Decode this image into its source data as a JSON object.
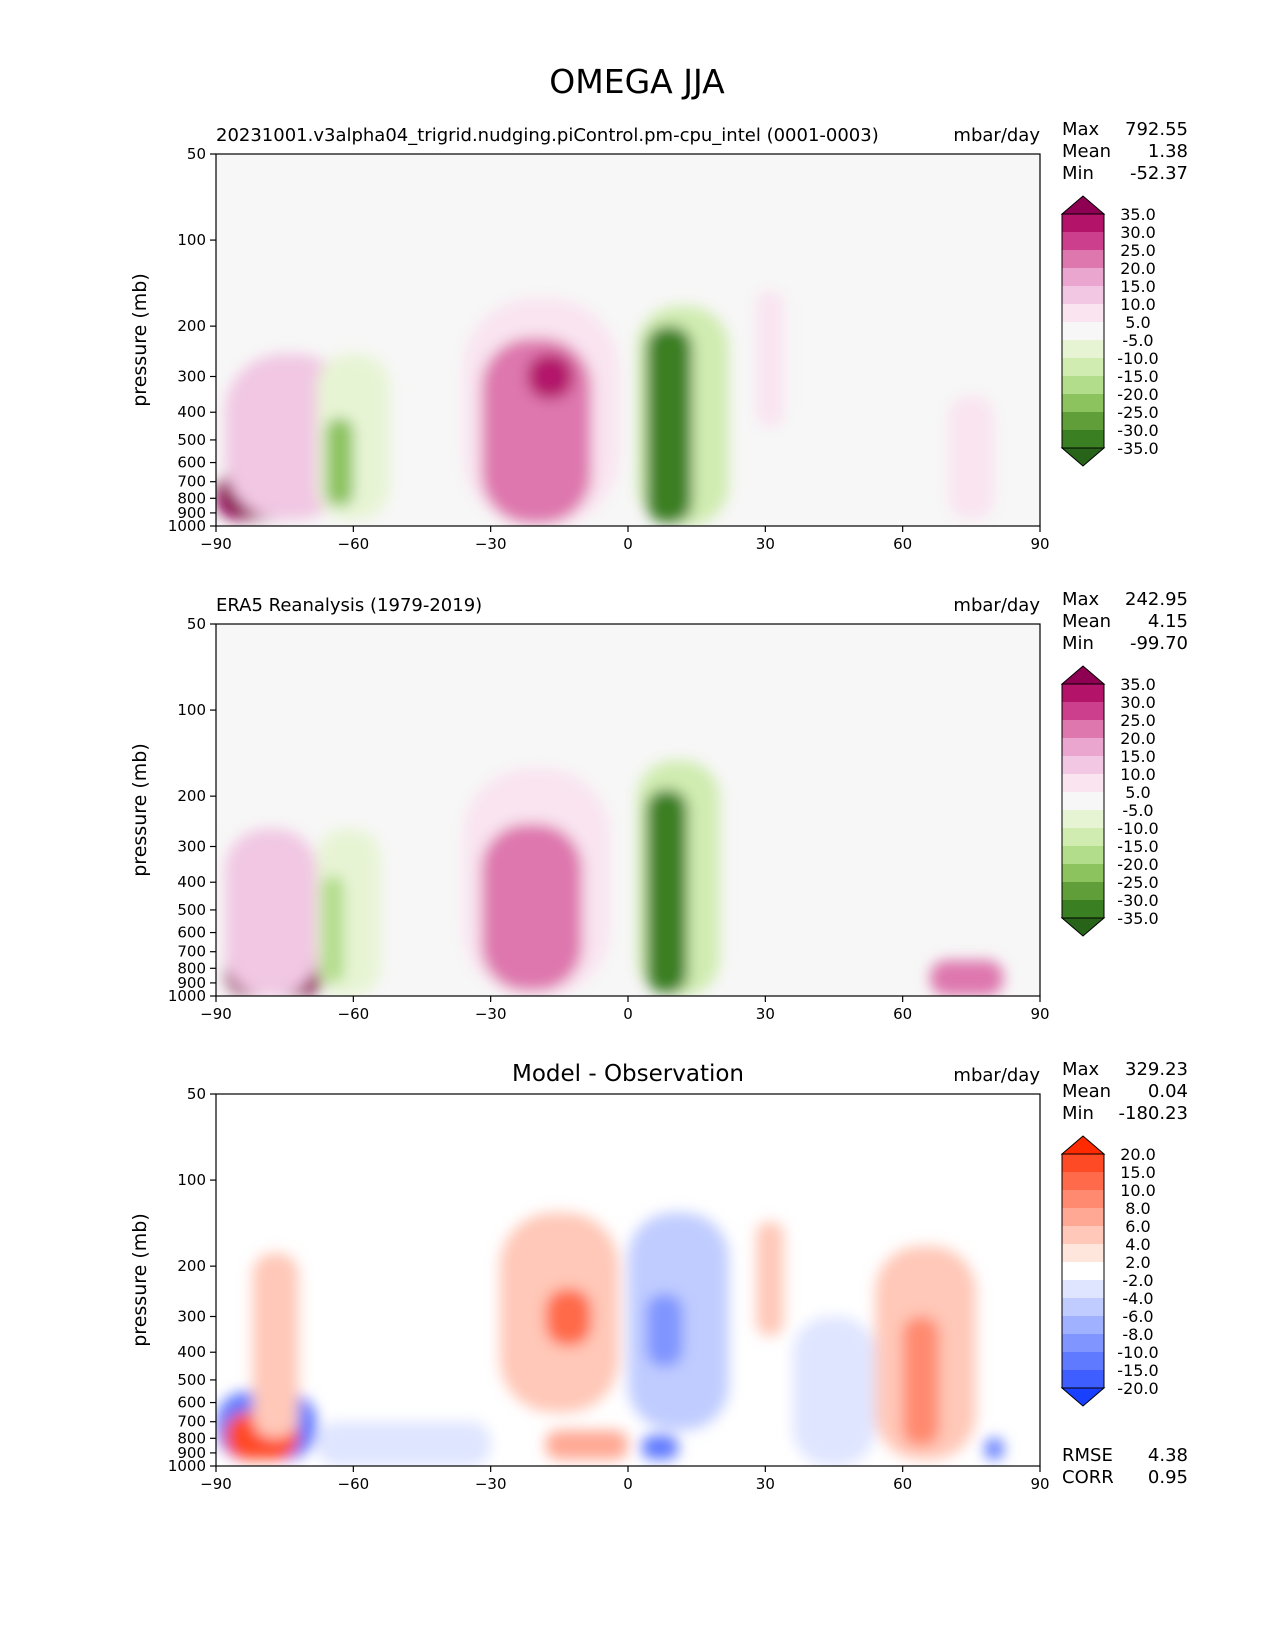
{
  "figure_title": "OMEGA JJA",
  "chart_data": [
    {
      "type": "heatmap",
      "title": "20231001.v3alpha04_trigrid.nudging.piControl.pm-cpu_intel (0001-0003)",
      "units": "mbar/day",
      "ylabel": "pressure (mb)",
      "xlabel": "",
      "x_ticks": [
        "−90",
        "−60",
        "−30",
        "0",
        "30",
        "60",
        "90"
      ],
      "y_ticks": [
        "50",
        "100",
        "200",
        "300",
        "400",
        "500",
        "600",
        "700",
        "800",
        "900",
        "1000"
      ],
      "xlim": [
        -90,
        90
      ],
      "ylim": [
        1000,
        50
      ],
      "stats": {
        "Max": "792.55",
        "Mean": "1.38",
        "Min": "-52.37"
      },
      "colorbar": {
        "labels": [
          "35.0",
          "30.0",
          "25.0",
          "20.0",
          "15.0",
          "10.0",
          "5.0",
          "-5.0",
          "-10.0",
          "-15.0",
          "-20.0",
          "-25.0",
          "-30.0",
          "-35.0"
        ],
        "colors": [
          "#8e0152",
          "#b3146a",
          "#cc3f8c",
          "#de77ae",
          "#eaa6cf",
          "#f1c7e3",
          "#f9e4f0",
          "#f7f7f7",
          "#e7f4d4",
          "#d0ecb1",
          "#b2dd8a",
          "#8cc35f",
          "#5f9e39",
          "#3b7f23",
          "#276419"
        ]
      },
      "features": [
        {
          "lat": [
            -90,
            -70
          ],
          "p": [
            650,
            950
          ],
          "value": 35
        },
        {
          "lat": [
            -88,
            -60
          ],
          "p": [
            250,
            950
          ],
          "value": 12
        },
        {
          "lat": [
            -68,
            -52
          ],
          "p": [
            250,
            950
          ],
          "value": -8
        },
        {
          "lat": [
            -66,
            -60
          ],
          "p": [
            420,
            850
          ],
          "value": -22
        },
        {
          "lat": [
            -36,
            -2
          ],
          "p": [
            160,
            1000
          ],
          "value": 8
        },
        {
          "lat": [
            -32,
            -8
          ],
          "p": [
            220,
            980
          ],
          "value": 20
        },
        {
          "lat": [
            -22,
            -12
          ],
          "p": [
            250,
            360
          ],
          "value": 30
        },
        {
          "lat": [
            2,
            22
          ],
          "p": [
            170,
            1000
          ],
          "value": -12
        },
        {
          "lat": [
            4,
            14
          ],
          "p": [
            200,
            980
          ],
          "value": -35
        },
        {
          "lat": [
            28,
            34
          ],
          "p": [
            150,
            450
          ],
          "value": 6
        },
        {
          "lat": [
            70,
            80
          ],
          "p": [
            350,
            950
          ],
          "value": 6
        }
      ]
    },
    {
      "type": "heatmap",
      "title": "ERA5 Reanalysis (1979-2019)",
      "units": "mbar/day",
      "ylabel": "pressure (mb)",
      "xlabel": "",
      "x_ticks": [
        "−90",
        "−60",
        "−30",
        "0",
        "30",
        "60",
        "90"
      ],
      "y_ticks": [
        "50",
        "100",
        "200",
        "300",
        "400",
        "500",
        "600",
        "700",
        "800",
        "900",
        "1000"
      ],
      "xlim": [
        -90,
        90
      ],
      "ylim": [
        1000,
        50
      ],
      "stats": {
        "Max": "242.95",
        "Mean": "4.15",
        "Min": "-99.70"
      },
      "colorbar": {
        "labels": [
          "35.0",
          "30.0",
          "25.0",
          "20.0",
          "15.0",
          "10.0",
          "5.0",
          "-5.0",
          "-10.0",
          "-15.0",
          "-20.0",
          "-25.0",
          "-30.0",
          "-35.0"
        ],
        "colors": [
          "#8e0152",
          "#b3146a",
          "#cc3f8c",
          "#de77ae",
          "#eaa6cf",
          "#f1c7e3",
          "#f9e4f0",
          "#f7f7f7",
          "#e7f4d4",
          "#d0ecb1",
          "#b2dd8a",
          "#8cc35f",
          "#5f9e39",
          "#3b7f23",
          "#276419"
        ]
      },
      "features": [
        {
          "lat": [
            -88,
            -66
          ],
          "p": [
            680,
            1000
          ],
          "value": 35
        },
        {
          "lat": [
            -88,
            -68
          ],
          "p": [
            260,
            1000
          ],
          "value": 10
        },
        {
          "lat": [
            -68,
            -54
          ],
          "p": [
            260,
            1000
          ],
          "value": -8
        },
        {
          "lat": [
            -67,
            -62
          ],
          "p": [
            380,
            900
          ],
          "value": -20
        },
        {
          "lat": [
            -36,
            -4
          ],
          "p": [
            160,
            1000
          ],
          "value": 8
        },
        {
          "lat": [
            -32,
            -10
          ],
          "p": [
            250,
            960
          ],
          "value": 20
        },
        {
          "lat": [
            2,
            20
          ],
          "p": [
            150,
            1000
          ],
          "value": -12
        },
        {
          "lat": [
            4,
            13
          ],
          "p": [
            190,
            980
          ],
          "value": -35
        },
        {
          "lat": [
            66,
            82
          ],
          "p": [
            750,
            1000
          ],
          "value": 20
        }
      ]
    },
    {
      "type": "heatmap",
      "title": "Model - Observation",
      "units": "mbar/day",
      "ylabel": "pressure (mb)",
      "xlabel": "",
      "x_ticks": [
        "−90",
        "−60",
        "−30",
        "0",
        "30",
        "60",
        "90"
      ],
      "y_ticks": [
        "50",
        "100",
        "200",
        "300",
        "400",
        "500",
        "600",
        "700",
        "800",
        "900",
        "1000"
      ],
      "xlim": [
        -90,
        90
      ],
      "ylim": [
        1000,
        50
      ],
      "stats": {
        "Max": "329.23",
        "Mean": "0.04",
        "Min": "-180.23"
      },
      "extra_stats": {
        "RMSE": "4.38",
        "CORR": "0.95"
      },
      "colorbar": {
        "labels": [
          "20.0",
          "15.0",
          "10.0",
          "8.0",
          "6.0",
          "4.0",
          "2.0",
          "-2.0",
          "-4.0",
          "-6.0",
          "-8.0",
          "-10.0",
          "-15.0",
          "-20.0"
        ],
        "colors": [
          "#ff2a00",
          "#ff4a26",
          "#ff6a4a",
          "#ff8a70",
          "#ffa994",
          "#ffc8b8",
          "#ffe6dc",
          "#ffffff",
          "#dfe5ff",
          "#c0ccff",
          "#a0b1ff",
          "#8095ff",
          "#607aff",
          "#3f5eff",
          "#1a40ff"
        ]
      },
      "features": [
        {
          "lat": [
            -90,
            -68
          ],
          "p": [
            550,
            950
          ],
          "value": -12
        },
        {
          "lat": [
            -88,
            -72
          ],
          "p": [
            650,
            950
          ],
          "value": 15
        },
        {
          "lat": [
            -82,
            -72
          ],
          "p": [
            180,
            800
          ],
          "value": 5
        },
        {
          "lat": [
            -68,
            -30
          ],
          "p": [
            700,
            1000
          ],
          "value": -4
        },
        {
          "lat": [
            -28,
            -2
          ],
          "p": [
            130,
            650
          ],
          "value": 5
        },
        {
          "lat": [
            -18,
            -8
          ],
          "p": [
            240,
            380
          ],
          "value": 10
        },
        {
          "lat": [
            -18,
            0
          ],
          "p": [
            750,
            950
          ],
          "value": 6
        },
        {
          "lat": [
            0,
            22
          ],
          "p": [
            130,
            750
          ],
          "value": -5
        },
        {
          "lat": [
            4,
            12
          ],
          "p": [
            250,
            450
          ],
          "value": -9
        },
        {
          "lat": [
            3,
            11
          ],
          "p": [
            780,
            950
          ],
          "value": -12
        },
        {
          "lat": [
            28,
            34
          ],
          "p": [
            140,
            350
          ],
          "value": 5
        },
        {
          "lat": [
            36,
            54
          ],
          "p": [
            300,
            1000
          ],
          "value": -3
        },
        {
          "lat": [
            54,
            76
          ],
          "p": [
            170,
            950
          ],
          "value": 5
        },
        {
          "lat": [
            60,
            68
          ],
          "p": [
            300,
            850
          ],
          "value": 9
        },
        {
          "lat": [
            78,
            82
          ],
          "p": [
            800,
            950
          ],
          "value": -12
        }
      ]
    }
  ]
}
